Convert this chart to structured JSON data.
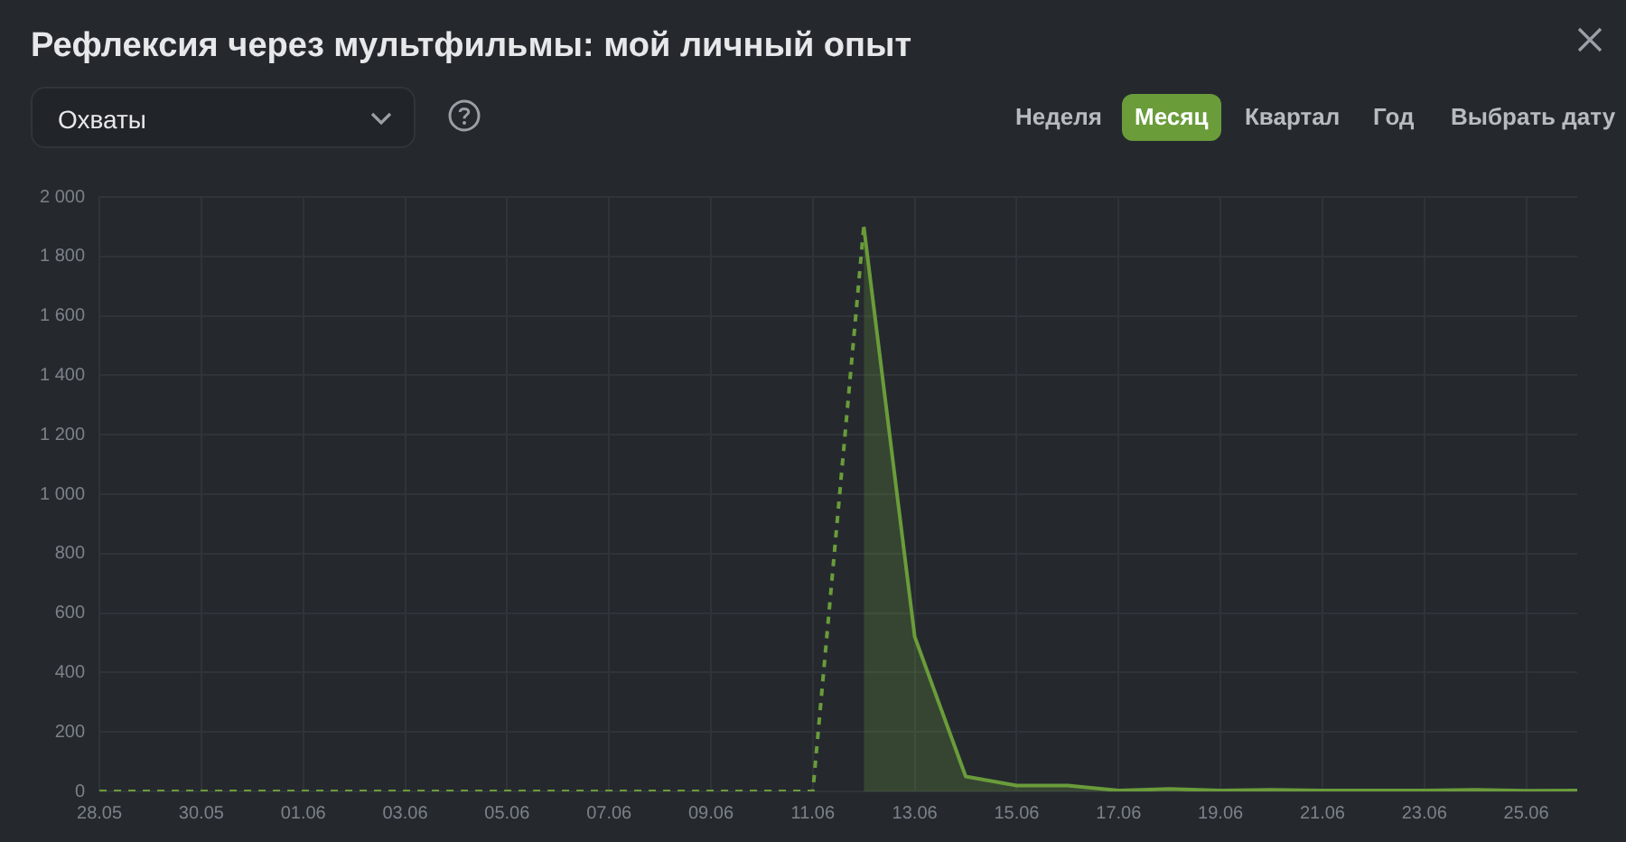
{
  "chart_data": {
    "type": "line",
    "title": "Рефлексия через мультфильмы: мой личный опыт",
    "annotations": [
      "Охваты",
      "Неделя",
      "Месяц",
      "Квартал",
      "Год",
      "Выбрать дату"
    ],
    "categories": [
      "28.05",
      null,
      "30.05",
      null,
      "01.06",
      null,
      "03.06",
      null,
      "05.06",
      null,
      "07.06",
      null,
      "09.06",
      null,
      "11.06",
      null,
      "13.06",
      null,
      "15.06",
      null,
      "17.06",
      null,
      "19.06",
      null,
      "21.06",
      null,
      "23.06",
      null,
      "25.06",
      null
    ],
    "series": [
      {
        "type": "line",
        "color": "#6a9c3a",
        "line_style": "dashed",
        "values": [
          0,
          0,
          0,
          0,
          0,
          0,
          0,
          0,
          0,
          0,
          0,
          0,
          0,
          0,
          0,
          1900,
          null,
          null,
          null,
          null,
          null,
          null,
          null,
          null,
          null,
          null,
          null,
          null,
          null,
          null
        ]
      },
      {
        "type": "area",
        "color": "#6a9c3a",
        "line_style": "solid",
        "values": [
          null,
          null,
          null,
          null,
          null,
          null,
          null,
          null,
          null,
          null,
          null,
          null,
          null,
          null,
          null,
          1900,
          520,
          50,
          20,
          20,
          3,
          8,
          3,
          5,
          3,
          3,
          3,
          5,
          2,
          3
        ]
      }
    ],
    "ylim": [
      0,
      2000
    ],
    "yticks": [
      0,
      200,
      400,
      600,
      800,
      {
        "value": 1000,
        "label": "1 000"
      },
      {
        "value": 1200,
        "label": "1 200"
      },
      {
        "value": 1400,
        "label": "1 400"
      },
      {
        "value": 1600,
        "label": "1 600"
      },
      {
        "value": 1800,
        "label": "1 800"
      },
      {
        "value": 2000,
        "label": "2 000"
      }
    ],
    "grid": true,
    "legend": false,
    "marker": "none"
  }
}
